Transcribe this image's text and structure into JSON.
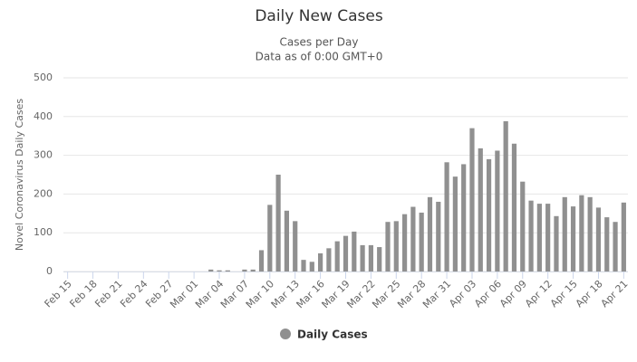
{
  "chart_data": {
    "type": "bar",
    "title": "Daily New Cases",
    "subtitle": [
      "Cases per Day",
      "Data as of 0:00 GMT+0"
    ],
    "y_label": "Novel Coronavirus Daily Cases",
    "categories": [
      "Feb 15",
      null,
      null,
      "Feb 18",
      null,
      null,
      "Feb 21",
      null,
      null,
      "Feb 24",
      null,
      null,
      "Feb 27",
      null,
      null,
      "Mar 01",
      null,
      null,
      "Mar 04",
      null,
      null,
      "Mar 07",
      null,
      null,
      "Mar 10",
      null,
      null,
      "Mar 13",
      null,
      null,
      "Mar 16",
      null,
      null,
      "Mar 19",
      null,
      null,
      "Mar 22",
      null,
      null,
      "Mar 25",
      null,
      null,
      "Mar 28",
      null,
      null,
      "Mar 31",
      null,
      null,
      "Apr 03",
      null,
      null,
      "Apr 06",
      null,
      null,
      "Apr 09",
      null,
      null,
      "Apr 12",
      null,
      null,
      "Apr 15",
      null,
      null,
      "Apr 18",
      null,
      null,
      "Apr 21"
    ],
    "series": [
      {
        "name": "Daily Cases",
        "color": "#909090",
        "values": [
          0,
          0,
          0,
          0,
          0,
          0,
          0,
          0,
          0,
          0,
          0,
          0,
          0,
          0,
          0,
          0,
          0,
          5,
          3,
          3,
          0,
          5,
          5,
          55,
          172,
          250,
          157,
          130,
          30,
          25,
          47,
          60,
          78,
          92,
          103,
          68,
          68,
          63,
          128,
          130,
          148,
          167,
          152,
          192,
          180,
          282,
          245,
          277,
          370,
          318,
          290,
          312,
          388,
          330,
          232,
          183,
          175,
          175,
          143,
          192,
          168,
          197,
          192,
          165,
          140,
          128,
          178
        ]
      }
    ],
    "ylim": [
      0,
      500
    ],
    "yticks": [
      0,
      100,
      200,
      300,
      400,
      500
    ],
    "grid": true,
    "legend": "bottom"
  }
}
